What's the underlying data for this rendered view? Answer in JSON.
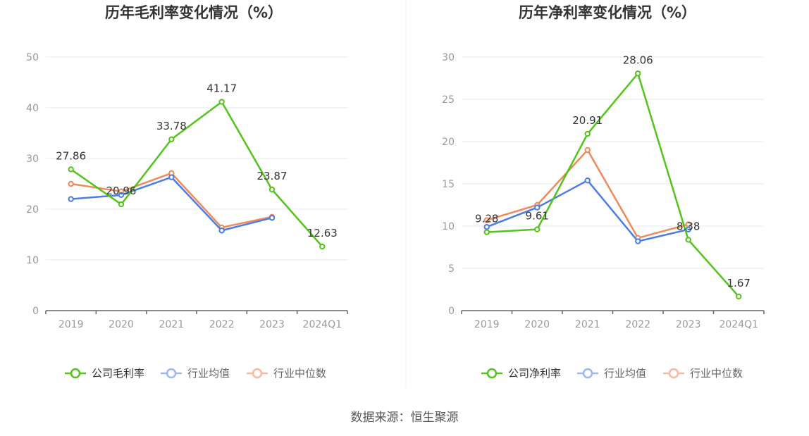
{
  "chart_data": [
    {
      "type": "line",
      "title": "历年毛利率变化情况（%）",
      "categories": [
        "2019",
        "2020",
        "2021",
        "2022",
        "2023",
        "2024Q1"
      ],
      "ylim": [
        0,
        50
      ],
      "yticks": [
        0,
        10,
        20,
        30,
        40,
        50
      ],
      "series": [
        {
          "name": "公司毛利率",
          "color": "#52c41a",
          "values": [
            27.86,
            20.96,
            33.78,
            41.17,
            23.87,
            12.63
          ],
          "labels": true
        },
        {
          "name": "行业均值",
          "color": "#4a7de6",
          "values": [
            22.0,
            22.8,
            26.3,
            15.8,
            18.3,
            null
          ],
          "labels": false
        },
        {
          "name": "行业中位数",
          "color": "#f08a5d",
          "values": [
            25.0,
            23.5,
            27.1,
            16.4,
            18.5,
            null
          ],
          "labels": false
        }
      ]
    },
    {
      "type": "line",
      "title": "历年净利率变化情况（%）",
      "categories": [
        "2019",
        "2020",
        "2021",
        "2022",
        "2023",
        "2024Q1"
      ],
      "ylim": [
        0,
        30
      ],
      "yticks": [
        0,
        5,
        10,
        15,
        20,
        25,
        30
      ],
      "series": [
        {
          "name": "公司净利率",
          "color": "#52c41a",
          "values": [
            9.28,
            9.61,
            20.91,
            28.06,
            8.38,
            1.67
          ],
          "labels": true
        },
        {
          "name": "行业均值",
          "color": "#4a7de6",
          "values": [
            9.9,
            12.2,
            15.4,
            8.2,
            9.6,
            null
          ],
          "labels": false
        },
        {
          "name": "行业中位数",
          "color": "#f08a5d",
          "values": [
            10.7,
            12.5,
            19.0,
            8.6,
            10.2,
            null
          ],
          "labels": false
        }
      ]
    }
  ],
  "source": "数据来源：恒生聚源"
}
